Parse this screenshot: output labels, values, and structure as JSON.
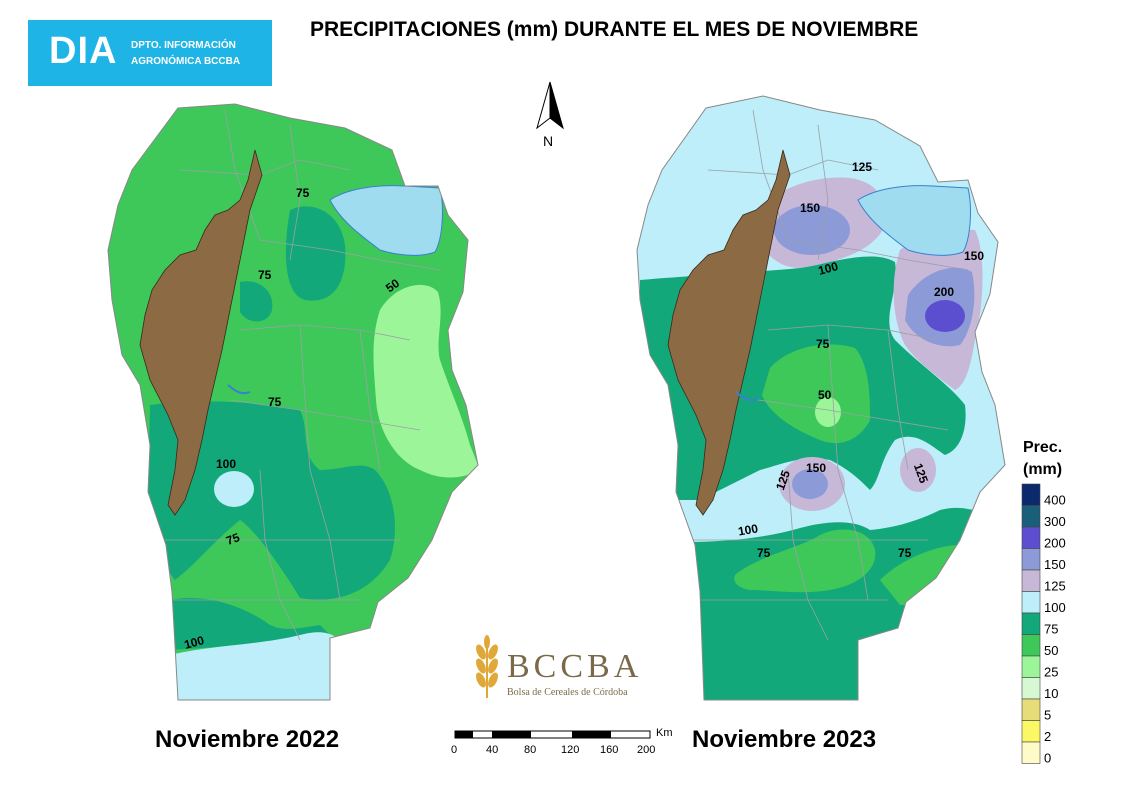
{
  "header": {
    "logo_text": "DIA",
    "logo_line1": "DPTO. INFORMACIÓN",
    "logo_line2": "AGRONÓMICA BCCBA",
    "title": "PRECIPITACIONES (mm) DURANTE EL MES DE NOVIEMBRE"
  },
  "north_arrow": {
    "label": "N"
  },
  "maps": [
    {
      "subtitle": "Noviembre 2022"
    },
    {
      "subtitle": "Noviembre 2023"
    }
  ],
  "isolines_2022": [
    "75",
    "75",
    "50",
    "75",
    "100",
    "75",
    "100"
  ],
  "isolines_2023": [
    "125",
    "150",
    "100",
    "150",
    "200",
    "75",
    "50",
    "125",
    "150",
    "125",
    "100",
    "75",
    "75"
  ],
  "bccba": {
    "name": "BCCBA",
    "full": "Bolsa de Cereales de Córdoba"
  },
  "scale_bar": {
    "unit": "Km",
    "ticks": [
      "0",
      "40",
      "80",
      "120",
      "160",
      "200"
    ]
  },
  "legend": {
    "title_line1": "Prec.",
    "title_line2": "(mm)",
    "classes": [
      {
        "label": "400",
        "color": "#0b2a6e"
      },
      {
        "label": "300",
        "color": "#1a5f7a"
      },
      {
        "label": "200",
        "color": "#5b4fd0"
      },
      {
        "label": "150",
        "color": "#8c9ad8"
      },
      {
        "label": "125",
        "color": "#c8b8d8"
      },
      {
        "label": "100",
        "color": "#bdeefa"
      },
      {
        "label": "75",
        "color": "#13a87a"
      },
      {
        "label": "50",
        "color": "#3ec85a"
      },
      {
        "label": "25",
        "color": "#9df59a"
      },
      {
        "label": "10",
        "color": "#d6f9d4"
      },
      {
        "label": "5",
        "color": "#e6dc78"
      },
      {
        "label": "2",
        "color": "#fbf866"
      },
      {
        "label": "0",
        "color": "#fffbc8"
      }
    ]
  }
}
